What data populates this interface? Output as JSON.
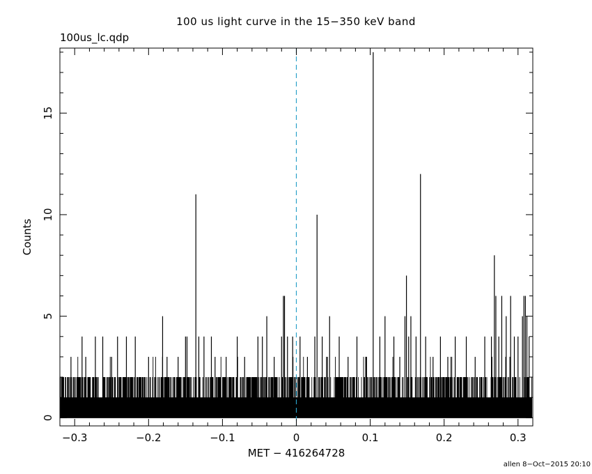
{
  "title": "100 us light curve in the 15−350 keV band",
  "subtitle": "100us_lc.qdp",
  "footer": "allen  8−Oct−2015 20:10",
  "chart_data": {
    "type": "bar",
    "title": "100 us light curve in the 15−350 keV band",
    "xlabel": "MET − 416264728",
    "ylabel": "Counts",
    "xlim": [
      -0.32,
      0.32
    ],
    "ylim": [
      -0.4,
      18.2
    ],
    "xticks": [
      {
        "value": -0.3,
        "label": "−0.3"
      },
      {
        "value": -0.2,
        "label": "−0.2"
      },
      {
        "value": -0.1,
        "label": "−0.1"
      },
      {
        "value": 0,
        "label": "0"
      },
      {
        "value": 0.1,
        "label": "0.1"
      },
      {
        "value": 0.2,
        "label": "0.2"
      },
      {
        "value": 0.3,
        "label": "0.3"
      }
    ],
    "yticks": [
      {
        "value": 0,
        "label": "0"
      },
      {
        "value": 5,
        "label": "5"
      },
      {
        "value": 10,
        "label": "10"
      },
      {
        "value": 15,
        "label": "15"
      }
    ],
    "bin_width": 0.0001,
    "background_level": 2,
    "trigger_line_x": 0,
    "trigger_line_color": "#2aa0c8",
    "line_color": "#000000",
    "peaks": [
      {
        "x": -0.305,
        "y": 3
      },
      {
        "x": -0.29,
        "y": 4
      },
      {
        "x": -0.285,
        "y": 3
      },
      {
        "x": -0.272,
        "y": 4
      },
      {
        "x": -0.262,
        "y": 4
      },
      {
        "x": -0.25,
        "y": 3
      },
      {
        "x": -0.242,
        "y": 4
      },
      {
        "x": -0.23,
        "y": 4
      },
      {
        "x": -0.218,
        "y": 4
      },
      {
        "x": -0.2,
        "y": 3
      },
      {
        "x": -0.181,
        "y": 5
      },
      {
        "x": -0.175,
        "y": 3
      },
      {
        "x": -0.16,
        "y": 3
      },
      {
        "x": -0.15,
        "y": 4
      },
      {
        "x": -0.148,
        "y": 4
      },
      {
        "x": -0.136,
        "y": 11
      },
      {
        "x": -0.132,
        "y": 4
      },
      {
        "x": -0.125,
        "y": 4
      },
      {
        "x": -0.115,
        "y": 4
      },
      {
        "x": -0.11,
        "y": 3
      },
      {
        "x": -0.095,
        "y": 3
      },
      {
        "x": -0.08,
        "y": 4
      },
      {
        "x": -0.07,
        "y": 3
      },
      {
        "x": -0.052,
        "y": 4
      },
      {
        "x": -0.046,
        "y": 4
      },
      {
        "x": -0.04,
        "y": 5
      },
      {
        "x": -0.03,
        "y": 3
      },
      {
        "x": -0.02,
        "y": 4
      },
      {
        "x": -0.0175,
        "y": 6
      },
      {
        "x": -0.016,
        "y": 6
      },
      {
        "x": -0.012,
        "y": 4
      },
      {
        "x": -0.005,
        "y": 4
      },
      {
        "x": 0.005,
        "y": 4
      },
      {
        "x": 0.015,
        "y": 3
      },
      {
        "x": 0.025,
        "y": 4
      },
      {
        "x": 0.028,
        "y": 10
      },
      {
        "x": 0.035,
        "y": 4
      },
      {
        "x": 0.042,
        "y": 3
      },
      {
        "x": 0.045,
        "y": 5
      },
      {
        "x": 0.058,
        "y": 4
      },
      {
        "x": 0.07,
        "y": 3
      },
      {
        "x": 0.082,
        "y": 4
      },
      {
        "x": 0.095,
        "y": 3
      },
      {
        "x": 0.104,
        "y": 18
      },
      {
        "x": 0.113,
        "y": 4
      },
      {
        "x": 0.12,
        "y": 5
      },
      {
        "x": 0.132,
        "y": 4
      },
      {
        "x": 0.14,
        "y": 3
      },
      {
        "x": 0.147,
        "y": 5
      },
      {
        "x": 0.149,
        "y": 7
      },
      {
        "x": 0.152,
        "y": 4
      },
      {
        "x": 0.155,
        "y": 5
      },
      {
        "x": 0.162,
        "y": 4
      },
      {
        "x": 0.168,
        "y": 12
      },
      {
        "x": 0.175,
        "y": 4
      },
      {
        "x": 0.185,
        "y": 3
      },
      {
        "x": 0.195,
        "y": 4
      },
      {
        "x": 0.205,
        "y": 3
      },
      {
        "x": 0.215,
        "y": 4
      },
      {
        "x": 0.23,
        "y": 4
      },
      {
        "x": 0.242,
        "y": 3
      },
      {
        "x": 0.255,
        "y": 4
      },
      {
        "x": 0.264,
        "y": 4
      },
      {
        "x": 0.268,
        "y": 8
      },
      {
        "x": 0.27,
        "y": 6
      },
      {
        "x": 0.274,
        "y": 4
      },
      {
        "x": 0.278,
        "y": 6
      },
      {
        "x": 0.284,
        "y": 5
      },
      {
        "x": 0.29,
        "y": 6
      },
      {
        "x": 0.295,
        "y": 4
      },
      {
        "x": 0.3,
        "y": 4
      },
      {
        "x": 0.306,
        "y": 5
      },
      {
        "x": 0.308,
        "y": 6
      },
      {
        "x": 0.31,
        "y": 6
      },
      {
        "x": 0.312,
        "y": 5
      },
      {
        "x": 0.315,
        "y": 4
      }
    ]
  }
}
